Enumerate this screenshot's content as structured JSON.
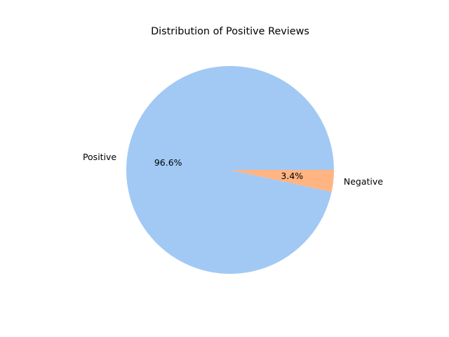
{
  "chart_data": {
    "type": "pie",
    "title": "Distribution of Positive Reviews",
    "slices": [
      {
        "label": "Positive",
        "value": 96.6,
        "pct_label": "96.6%",
        "color": "#a1c9f4"
      },
      {
        "label": "Negative",
        "value": 3.4,
        "pct_label": "3.4%",
        "color": "#ffb482"
      }
    ],
    "start_angle_deg": 0,
    "direction": "counterclockwise",
    "legend": "none"
  }
}
